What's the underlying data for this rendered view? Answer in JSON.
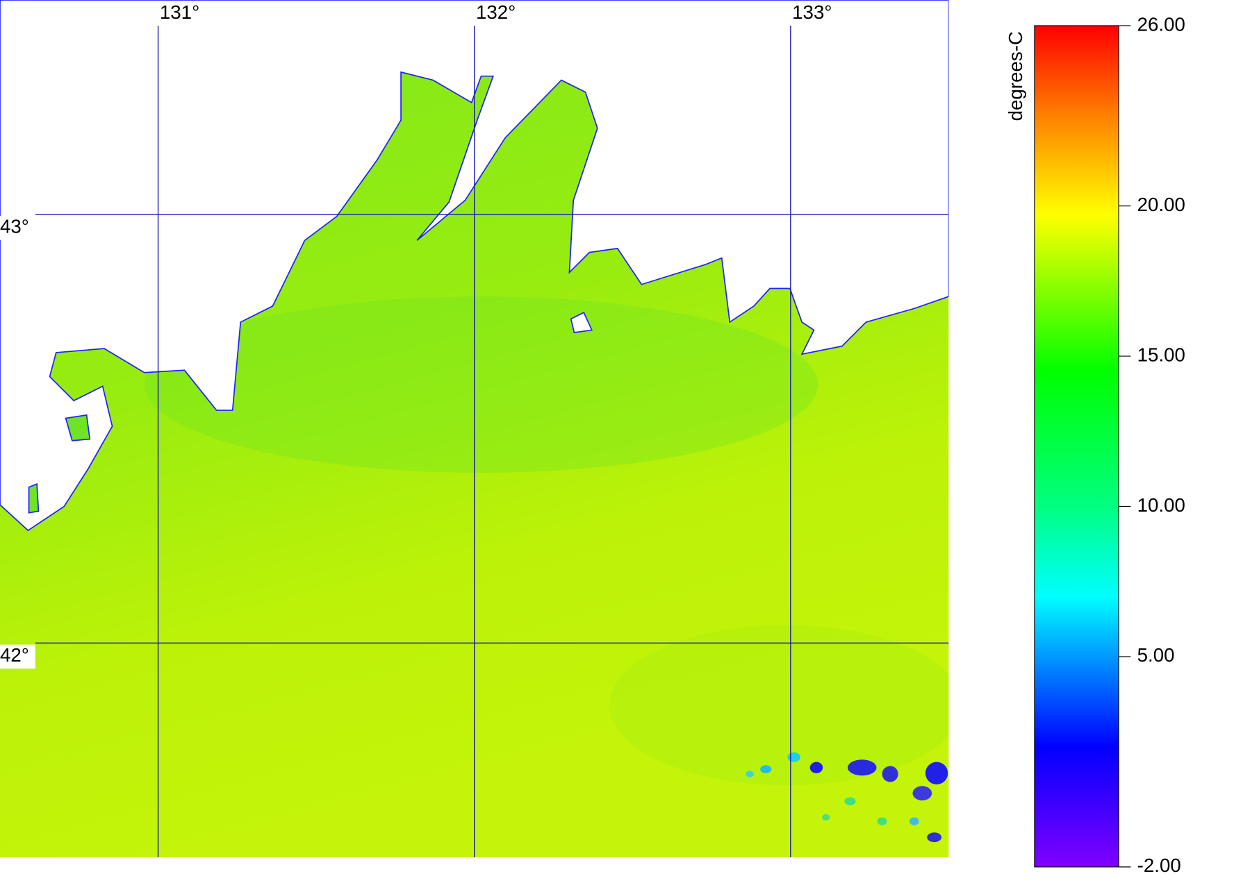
{
  "map": {
    "lonlim": [
      130.5,
      133.5
    ],
    "latlim": [
      41.5,
      43.5
    ],
    "lon_ticks": [
      {
        "value": 131,
        "label": "131°"
      },
      {
        "value": 132,
        "label": "132°"
      },
      {
        "value": 133,
        "label": "133°"
      }
    ],
    "lat_ticks": [
      {
        "value": 43,
        "label": "43°"
      },
      {
        "value": 42,
        "label": "42°"
      }
    ],
    "grid_color": "#1a1ab4"
  },
  "colorbar": {
    "label": "degrees-C",
    "ylim": [
      -2,
      26
    ],
    "yticks": [
      {
        "value": 26,
        "label": "26.00"
      },
      {
        "value": 20,
        "label": "20.00"
      },
      {
        "value": 15,
        "label": "15.00"
      },
      {
        "value": 10,
        "label": "10.00"
      },
      {
        "value": 5,
        "label": "5.00"
      },
      {
        "value": -2,
        "label": "-2.00"
      }
    ],
    "colormap": [
      {
        "value": -2,
        "color": "#8000ff"
      },
      {
        "value": 2,
        "color": "#0000ff"
      },
      {
        "value": 7,
        "color": "#00ffff"
      },
      {
        "value": 10,
        "color": "#00ff80"
      },
      {
        "value": 14.5,
        "color": "#00ff00"
      },
      {
        "value": 19.7,
        "color": "#ffff00"
      },
      {
        "value": 23,
        "color": "#ff8000"
      },
      {
        "value": 26,
        "color": "#ff0000"
      }
    ]
  }
}
